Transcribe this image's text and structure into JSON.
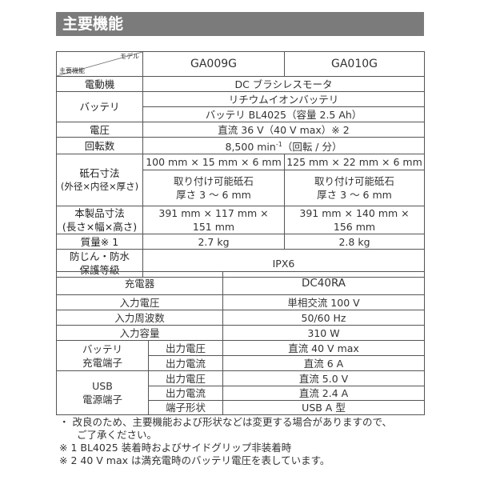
{
  "section_title": "主要機能",
  "spec_table": {
    "corner_model": "モデル",
    "corner_feature": "主要機能",
    "models": [
      "GA009G",
      "GA010G"
    ],
    "motor": {
      "label": "電動機",
      "value": "DC ブラシレスモータ"
    },
    "battery": {
      "label": "バッテリ",
      "value1": "リチウムイオンバッテリ",
      "value2": "バッテリ BL4025（容量 2.5 Ah）"
    },
    "voltage": {
      "label": "電圧",
      "value": "直流 36 V（40 V max）※ 2"
    },
    "rpm": {
      "label": "回転数",
      "value": "8,500 min",
      "sup": "-1",
      "suffix": "（回転 / 分）"
    },
    "wheel": {
      "label1": "砥石寸法",
      "label2": "(外径×内径×厚さ)",
      "ga009g": "100 mm × 15 mm × 6 mm",
      "ga010g": "125 mm × 22 mm × 6 mm",
      "mount1": "取り付け可能砥石",
      "mount2": "厚さ 3 ～ 6 mm"
    },
    "size": {
      "label1": "本製品寸法",
      "label2": "(長さ×幅×高さ)",
      "ga009g_1": "391 mm × 117 mm ×",
      "ga009g_2": "151 mm",
      "ga010g_1": "391 mm × 140 mm ×",
      "ga010g_2": "156 mm"
    },
    "weight": {
      "label": "質量※ 1",
      "ga009g": "2.7 kg",
      "ga010g": "2.8 kg"
    },
    "protection": {
      "label1": "防じん・防水",
      "label2": "保護等級",
      "value": "IPX6"
    }
  },
  "charger_table": {
    "charger_label": "充電器",
    "charger_model": "DC40RA",
    "input_voltage": {
      "label": "入力電圧",
      "value": "単相交流 100 V"
    },
    "input_freq": {
      "label": "入力周波数",
      "value": "50/60 Hz"
    },
    "input_capacity": {
      "label": "入力容量",
      "value": "310 W"
    },
    "battery_terminal": {
      "label1": "バッテリ",
      "label2": "充電端子",
      "out_v_label": "出力電圧",
      "out_v": "直流 40 V max",
      "out_a_label": "出力電流",
      "out_a": "直流 6 A"
    },
    "usb_terminal": {
      "label1": "USB",
      "label2": "電源端子",
      "out_v_label": "出力電圧",
      "out_v": "直流 5.0 V",
      "out_a_label": "出力電流",
      "out_a": "直流 2.4 A",
      "shape_label": "端子形状",
      "shape": "USB A 型"
    }
  },
  "notes": {
    "note1a": "・ 改良のため、主要機能および形状などは変更する場合がありますので、",
    "note1b": "ご了承ください。",
    "note2": "※ 1 BL4025 装着時およびサイドグリップ非装着時",
    "note3": "※ 2 40 V max は満充電時のバッテリ電圧を表しています。"
  }
}
